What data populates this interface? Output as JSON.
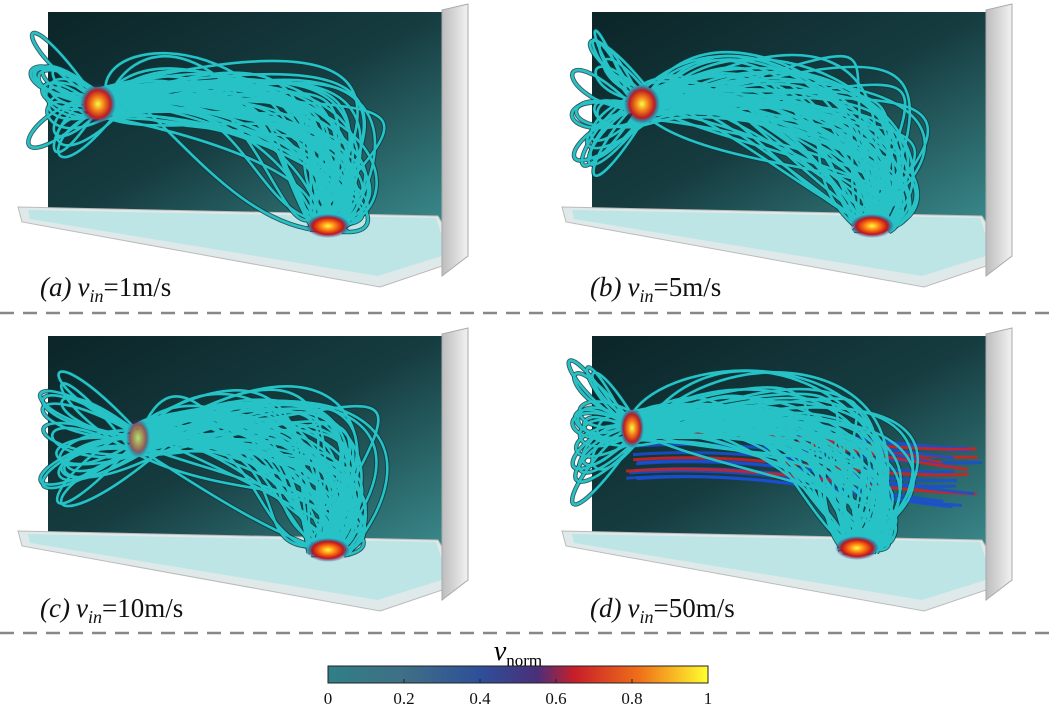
{
  "panels": [
    {
      "label": "(a)",
      "var": "v",
      "sub": "in",
      "value": "=1m/s"
    },
    {
      "label": "(b)",
      "var": "v",
      "sub": "in",
      "value": "=5m/s"
    },
    {
      "label": "(c)",
      "var": "v",
      "sub": "in",
      "value": "=10m/s"
    },
    {
      "label": "(d)",
      "var": "v",
      "sub": "in",
      "value": "=50m/s"
    }
  ],
  "colorbar": {
    "var": "v",
    "sub": "norm",
    "lim": [
      0,
      1
    ],
    "ticks": [
      0,
      0.2,
      0.4,
      0.6,
      0.8,
      1
    ]
  }
}
